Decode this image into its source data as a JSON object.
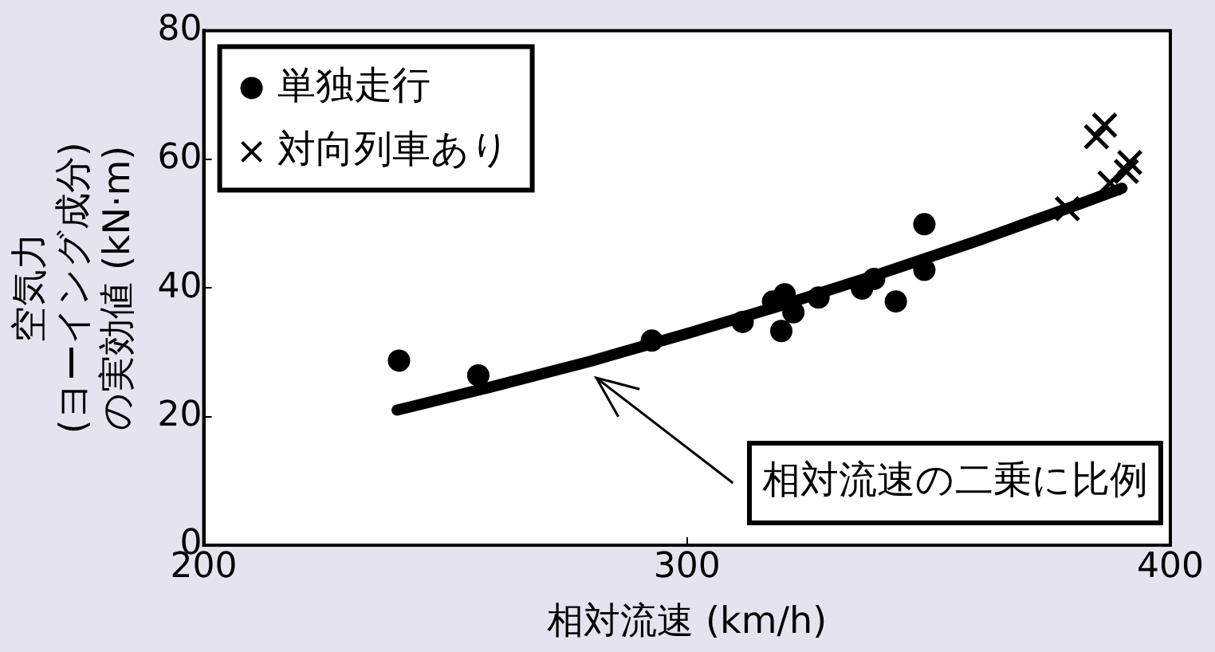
{
  "chart_data": {
    "type": "scatter",
    "xlabel": "相対流速 (km/h)",
    "ylabel": "空気力\n(ヨーイング成分)\nの実効値 (kN·m)",
    "xlim": [
      200,
      400
    ],
    "xticks": [
      200,
      300,
      400
    ],
    "ylim": [
      0,
      80
    ],
    "yticks": [
      0,
      20,
      40,
      60,
      80
    ],
    "grid": false,
    "legend": "top left",
    "series": [
      {
        "name": "単独走行",
        "color": "#000000",
        "marker": "circle",
        "x": [
          240.4,
          256.8,
          292.7,
          311.5,
          317.8,
          319.5,
          320.2,
          322,
          327.2,
          336.2,
          338.7,
          343.2,
          349.1,
          349.1
        ],
        "values": [
          28.7,
          26.4,
          31.8,
          34.7,
          37.9,
          33.3,
          39.0,
          36.2,
          38.5,
          39.9,
          41.4,
          37.9,
          49.9,
          42.8
        ]
      },
      {
        "name": "対向列車あり",
        "color": "#000000",
        "marker": "cross",
        "x": [
          378.7,
          384.7,
          386.4,
          387.5,
          390.9,
          391.6
        ],
        "values": [
          52.3,
          63.5,
          65.3,
          56.3,
          58.1,
          59.5
        ]
      },
      {
        "type": "line",
        "color": "#000000",
        "marker": "none",
        "x": [
          240,
          260,
          280,
          300,
          320,
          340,
          360,
          380,
          390
        ],
        "values": [
          21.0,
          24.7,
          28.6,
          32.9,
          37.4,
          42.2,
          47.3,
          52.7,
          55.5
        ]
      }
    ],
    "annotations": [
      {
        "text": "相対流速の二乗に比例",
        "x": 280,
        "y": 28
      }
    ]
  }
}
